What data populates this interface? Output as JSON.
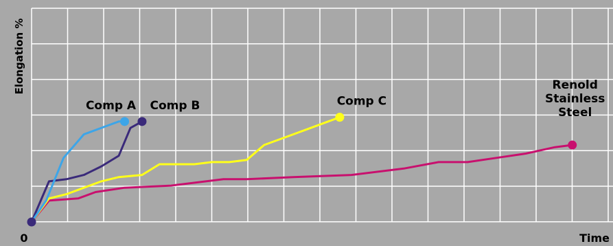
{
  "chart_data": {
    "type": "line",
    "xlabel": "Time",
    "ylabel": "Elongation %",
    "origin_label": "0",
    "xlim": [
      0,
      100
    ],
    "ylim": [
      0,
      100
    ],
    "grid": true,
    "background": "#a8a8a8",
    "grid_color": "#ffffff",
    "series": [
      {
        "name": "Comp A",
        "label_lines": [
          "Comp A"
        ],
        "color": "#3da5e8",
        "points": [
          [
            0,
            0
          ],
          [
            2.5,
            10
          ],
          [
            5.5,
            30
          ],
          [
            9,
            41
          ],
          [
            13,
            45
          ],
          [
            15,
            47
          ],
          [
            16,
            47
          ]
        ]
      },
      {
        "name": "Comp B",
        "label_lines": [
          "Comp B"
        ],
        "color": "#3a2a7a",
        "points": [
          [
            0,
            0
          ],
          [
            3,
            19
          ],
          [
            6,
            20
          ],
          [
            9,
            22
          ],
          [
            12,
            26
          ],
          [
            15,
            31
          ],
          [
            17,
            44
          ],
          [
            19,
            47
          ]
        ]
      },
      {
        "name": "Comp C",
        "label_lines": [
          "Comp C"
        ],
        "color": "#ffff1a",
        "points": [
          [
            0,
            0
          ],
          [
            3,
            11
          ],
          [
            6,
            13
          ],
          [
            9,
            16
          ],
          [
            12,
            19
          ],
          [
            15,
            21
          ],
          [
            19,
            22
          ],
          [
            22,
            27
          ],
          [
            25,
            27
          ],
          [
            28,
            27
          ],
          [
            31,
            28
          ],
          [
            34,
            28
          ],
          [
            37,
            29
          ],
          [
            40,
            36
          ],
          [
            44,
            40
          ],
          [
            48,
            44
          ],
          [
            51,
            47
          ],
          [
            53,
            49
          ]
        ]
      },
      {
        "name": "Renold Stainless Steel",
        "label_lines": [
          "Renold",
          "Stainless",
          "Steel"
        ],
        "color": "#c8106e",
        "points": [
          [
            0,
            0
          ],
          [
            3,
            10
          ],
          [
            8,
            11
          ],
          [
            11,
            14
          ],
          [
            16,
            16
          ],
          [
            24,
            17
          ],
          [
            33,
            20
          ],
          [
            37,
            20
          ],
          [
            45,
            21
          ],
          [
            55,
            22
          ],
          [
            64,
            25
          ],
          [
            70,
            28
          ],
          [
            75,
            28
          ],
          [
            80,
            30
          ],
          [
            85,
            32
          ],
          [
            90,
            35
          ],
          [
            93,
            36
          ]
        ]
      }
    ]
  }
}
